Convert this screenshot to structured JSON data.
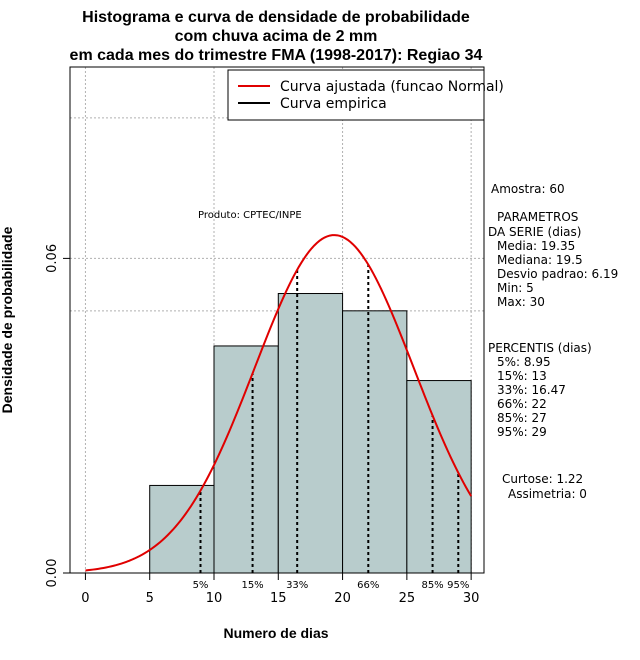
{
  "chart_data": {
    "type": "bar",
    "title_lines": [
      "Histograma e curva de densidade de probabilidade",
      "com chuva acima de 2 mm",
      "em cada mes do trimestre FMA (1998-2017): Regiao 34"
    ],
    "xlabel": "Numero de dias",
    "ylabel": "Densidade de probabilidade",
    "xlim": [
      -1.2,
      31
    ],
    "ylim": [
      0,
      0.0965
    ],
    "x_ticks": [
      0,
      5,
      10,
      15,
      20,
      25,
      30
    ],
    "x_tick_labels": [
      "0",
      "5",
      "10",
      "15",
      "20",
      "25",
      "30"
    ],
    "y_ticks": [
      0.0,
      0.06
    ],
    "y_tick_labels": [
      "0.00",
      "0.06"
    ],
    "grid_x": [
      0,
      10,
      20,
      30
    ],
    "grid_y": [
      0.06
    ],
    "bins": [
      {
        "from": 5,
        "to": 10,
        "density": 0.0167
      },
      {
        "from": 10,
        "to": 15,
        "density": 0.0433
      },
      {
        "from": 15,
        "to": 20,
        "density": 0.0533
      },
      {
        "from": 20,
        "to": 25,
        "density": 0.05
      },
      {
        "from": 25,
        "to": 30,
        "density": 0.0367
      }
    ],
    "bar_color": "#b8cccc",
    "normal_curve": {
      "mean": 19.35,
      "sd": 6.19,
      "x_from": 0,
      "x_to": 30,
      "color": "#e00000"
    },
    "percentile_lines": [
      {
        "label": "5%",
        "x": 8.95
      },
      {
        "label": "15%",
        "x": 13
      },
      {
        "label": "33%",
        "x": 16.47
      },
      {
        "label": "66%",
        "x": 22
      },
      {
        "label": "85%",
        "x": 27
      },
      {
        "label": "95%",
        "x": 29
      }
    ],
    "legend": [
      {
        "label": "Curva ajustada (funcao Normal)",
        "color": "#e00000"
      },
      {
        "label": "Curva empirica",
        "color": "#000000"
      }
    ],
    "legend_position": "top-right",
    "annotation": "Produto: CPTEC/INPE"
  },
  "stats_panel": {
    "amostra": "Amostra: 60",
    "param_title_1": "PARAMETROS",
    "param_title_2": "DA SERIE (dias)",
    "media": "Media: 19.35",
    "mediana": "Mediana: 19.5",
    "desvio": "Desvio padrao: 6.19",
    "min": "Min: 5",
    "max": "Max: 30",
    "percentis_title": "PERCENTIS (dias)",
    "p5": "5%: 8.95",
    "p15": "15%: 13",
    "p33": "33%: 16.47",
    "p66": "66%: 22",
    "p85": "85%: 27",
    "p95": "95%: 29",
    "curtose": "Curtose: 1.22",
    "assimetria": "Assimetria: 0"
  }
}
